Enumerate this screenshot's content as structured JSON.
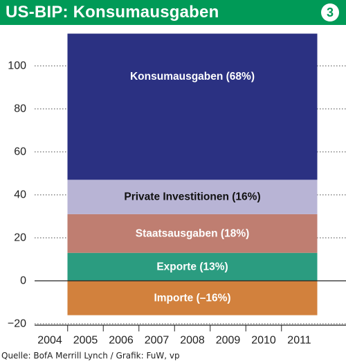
{
  "header": {
    "title": "US-BIP: Konsumausgaben",
    "badge": "3",
    "background_color": "#009a57"
  },
  "source": "Quelle: BofA Merrill Lynch / Grafik: FuW, vp",
  "chart_data": {
    "type": "bar",
    "stacked": true,
    "categories": [
      "2004",
      "2005",
      "2006",
      "2007",
      "2008",
      "2009",
      "2010",
      "2011"
    ],
    "ylim": [
      -20,
      115
    ],
    "yticks": [
      -20,
      0,
      20,
      40,
      60,
      80,
      100
    ],
    "grid": "horizontal-dotted",
    "bar_span": [
      "2005",
      "2011"
    ],
    "segments": [
      {
        "label": "Importe (–16%)",
        "from": -16,
        "to": 0,
        "color": "#d2813d",
        "text_color": "#ffffff"
      },
      {
        "label": "Exporte (13%)",
        "from": 0,
        "to": 13,
        "color": "#2b9c80",
        "text_color": "#ffffff"
      },
      {
        "label": "Staatsausgaben (18%)",
        "from": 13,
        "to": 31,
        "color": "#bf7e71",
        "text_color": "#ffffff"
      },
      {
        "label": "Private Investitionen (16%)",
        "from": 31,
        "to": 47,
        "color": "#b8b4d5",
        "text_color": "#111111"
      },
      {
        "label": "Konsumausgaben (68%)",
        "from": 47,
        "to": 115,
        "color": "#2b3182",
        "text_color": "#ffffff"
      }
    ]
  }
}
